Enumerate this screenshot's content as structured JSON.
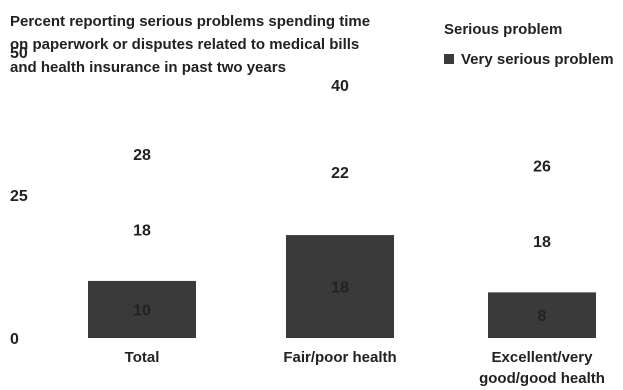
{
  "chart_data": {
    "type": "bar",
    "title": "Percent reporting serious problems spending time on paperwork or disputes related to medical bills and health insurance in past two years",
    "categories": [
      "Total",
      "Fair/poor health",
      "Excellent/very good/good health"
    ],
    "category_lines": [
      [
        "Total"
      ],
      [
        "Fair/poor health"
      ],
      [
        "Excellent/very",
        "good/good health"
      ]
    ],
    "series": [
      {
        "name": "Serious problem",
        "values": [
          18,
          22,
          18
        ],
        "color": "#ffffff"
      },
      {
        "name": "Very serious problem",
        "values": [
          10,
          18,
          8
        ],
        "color": "#3a3a3a"
      }
    ],
    "totals": [
      28,
      40,
      26
    ],
    "yticks": [
      0,
      25,
      50
    ],
    "ylim": [
      0,
      50
    ],
    "stacked": true,
    "legend_position": "top-right"
  }
}
